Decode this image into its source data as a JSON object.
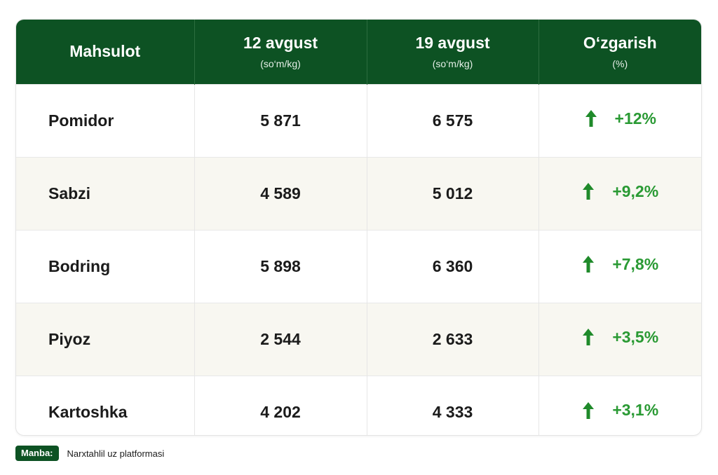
{
  "table": {
    "headers": [
      {
        "main": "Mahsulot",
        "unit": ""
      },
      {
        "main": "12 avgust",
        "unit": "(so‘m/kg)"
      },
      {
        "main": "19 avgust",
        "unit": "(so‘m/kg)"
      },
      {
        "main": "O‘zgarish",
        "unit": "(%)"
      }
    ],
    "rows": [
      {
        "product": "Pomidor",
        "aug12": "5 871",
        "aug19": "6 575",
        "change": "+12%"
      },
      {
        "product": "Sabzi",
        "aug12": "4 589",
        "aug19": "5 012",
        "change": "+9,2%"
      },
      {
        "product": "Bodring",
        "aug12": "5 898",
        "aug19": "6 360",
        "change": "+7,8%"
      },
      {
        "product": "Piyoz",
        "aug12": "2 544",
        "aug19": "2 633",
        "change": "+3,5%"
      },
      {
        "product": "Kartoshka",
        "aug12": "4 202",
        "aug19": "4 333",
        "change": "+3,1%"
      }
    ]
  },
  "source": {
    "label": "Manba:",
    "text": "Narxtahlil uz platformasi"
  },
  "icons": {
    "change_arrow": "arrow-up-icon"
  },
  "colors": {
    "header_bg": "#0d5223",
    "increase": "#2a9a34",
    "alt_row": "#f8f7f1"
  },
  "chart_data": {
    "type": "table",
    "columns": [
      "Mahsulot",
      "12 avgust (so‘m/kg)",
      "19 avgust (so‘m/kg)",
      "O‘zgarish (%)"
    ],
    "rows": [
      [
        "Pomidor",
        5871,
        6575,
        12
      ],
      [
        "Sabzi",
        4589,
        5012,
        9.2
      ],
      [
        "Bodring",
        5898,
        6360,
        7.8
      ],
      [
        "Piyoz",
        2544,
        2633,
        3.5
      ],
      [
        "Kartoshka",
        4202,
        4333,
        3.1
      ]
    ]
  }
}
